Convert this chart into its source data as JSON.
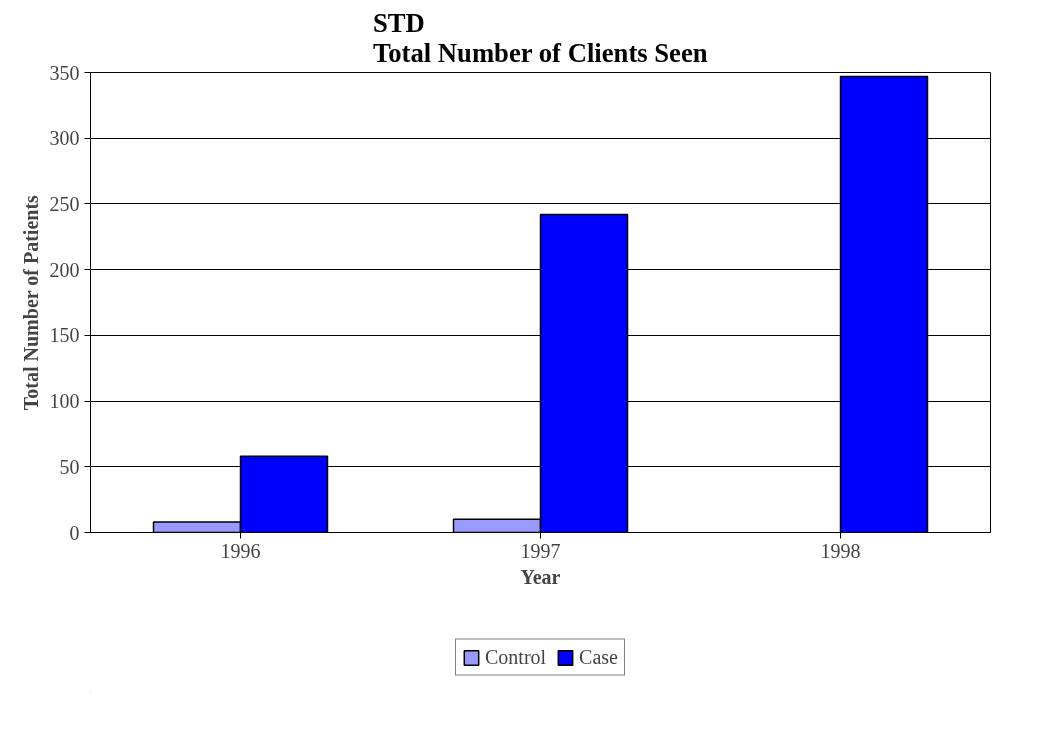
{
  "chart_data": {
    "type": "bar",
    "title": "STD\nTotal Number of Clients Seen",
    "xlabel": "Year",
    "ylabel": "Total Number of Patients",
    "categories": [
      "1996",
      "1997",
      "1998"
    ],
    "series": [
      {
        "name": "Control",
        "color": "#9999ff",
        "values": [
          8,
          10,
          null
        ]
      },
      {
        "name": "Case",
        "color": "#0000ff",
        "values": [
          58,
          242,
          347
        ]
      }
    ],
    "ylim": [
      0,
      350
    ],
    "yticks": [
      0,
      50,
      100,
      150,
      200,
      250,
      300,
      350
    ],
    "grid": "y",
    "legend": "bottom"
  }
}
